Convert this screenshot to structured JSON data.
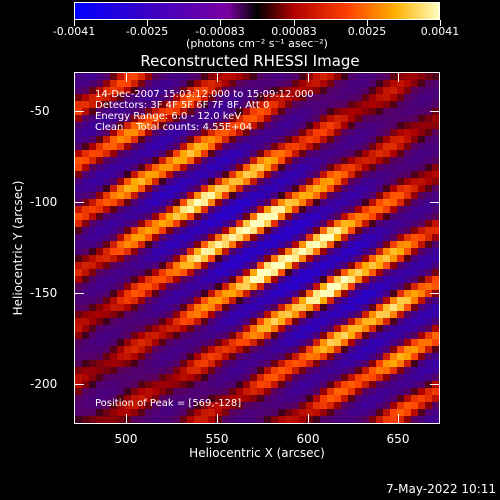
{
  "colorbar": {
    "tick_labels": [
      "-0.0041",
      "-0.0025",
      "-0.00083",
      "0.00083",
      "0.0025",
      "0.0041"
    ],
    "units": "(photons cm⁻² s⁻¹ asec⁻²)",
    "range": [
      -0.0041,
      0.0041
    ]
  },
  "title": "Reconstructed RHESSI Image",
  "info_lines": [
    "14-Dec-2007 15:03:12.000 to 15:09:12.000",
    "Detectors: 3F 4F 5F 6F 7F 8F, Att 0",
    "Energy Range: 6.0 - 12.0 keV",
    "Clean    Total counts: 4.55E+04"
  ],
  "peak_text": "Position of Peak = [569,-128]",
  "axes": {
    "xlabel": "Heliocentric X (arcsec)",
    "ylabel": "Heliocentric Y (arcsec)",
    "xticks": [
      "500",
      "550",
      "600",
      "650"
    ],
    "yticks": [
      "-50",
      "-100",
      "-150",
      "-200"
    ]
  },
  "timestamp": "7-May-2022 10:11",
  "colors": {
    "background": "#000000",
    "text": "#ffffff"
  }
}
